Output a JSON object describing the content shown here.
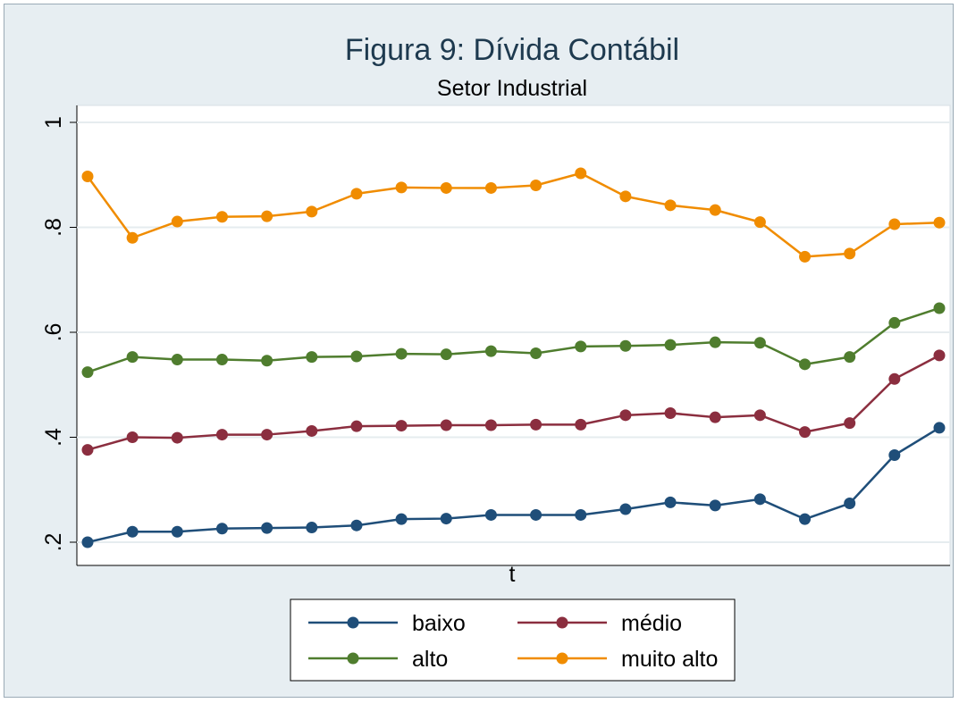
{
  "chart_data": {
    "type": "line",
    "title": "Figura 9: Dívida Contábil",
    "subtitle": "Setor Industrial",
    "xlabel": "t",
    "ylabel": "",
    "ylim": [
      0.2,
      1.0
    ],
    "yticks": [
      0.2,
      0.4,
      0.6,
      0.8,
      1.0
    ],
    "ytick_labels": [
      ".2",
      ".4",
      ".6",
      ".8",
      "1"
    ],
    "x": [
      1,
      2,
      3,
      4,
      5,
      6,
      7,
      8,
      9,
      10,
      11,
      12,
      13,
      14,
      15,
      16,
      17,
      18,
      19,
      20
    ],
    "grid": true,
    "legend_position": "bottom",
    "series": [
      {
        "name": "baixo",
        "color": "#1f4e79",
        "values": [
          0.2,
          0.22,
          0.22,
          0.226,
          0.227,
          0.228,
          0.232,
          0.244,
          0.245,
          0.252,
          0.252,
          0.252,
          0.263,
          0.276,
          0.27,
          0.282,
          0.244,
          0.274,
          0.366,
          0.418
        ]
      },
      {
        "name": "médio",
        "color": "#8b2e3f",
        "values": [
          0.376,
          0.4,
          0.399,
          0.405,
          0.405,
          0.412,
          0.421,
          0.422,
          0.423,
          0.423,
          0.424,
          0.424,
          0.442,
          0.446,
          0.438,
          0.442,
          0.41,
          0.427,
          0.511,
          0.556
        ]
      },
      {
        "name": "alto",
        "color": "#4f7d2e",
        "values": [
          0.524,
          0.553,
          0.548,
          0.548,
          0.546,
          0.553,
          0.554,
          0.559,
          0.558,
          0.564,
          0.56,
          0.573,
          0.574,
          0.576,
          0.581,
          0.58,
          0.539,
          0.553,
          0.618,
          0.646
        ]
      },
      {
        "name": "muito alto",
        "color": "#f08c00",
        "values": [
          0.897,
          0.78,
          0.811,
          0.82,
          0.821,
          0.83,
          0.864,
          0.876,
          0.875,
          0.875,
          0.88,
          0.903,
          0.859,
          0.842,
          0.833,
          0.81,
          0.744,
          0.75,
          0.806,
          0.809
        ]
      }
    ]
  }
}
